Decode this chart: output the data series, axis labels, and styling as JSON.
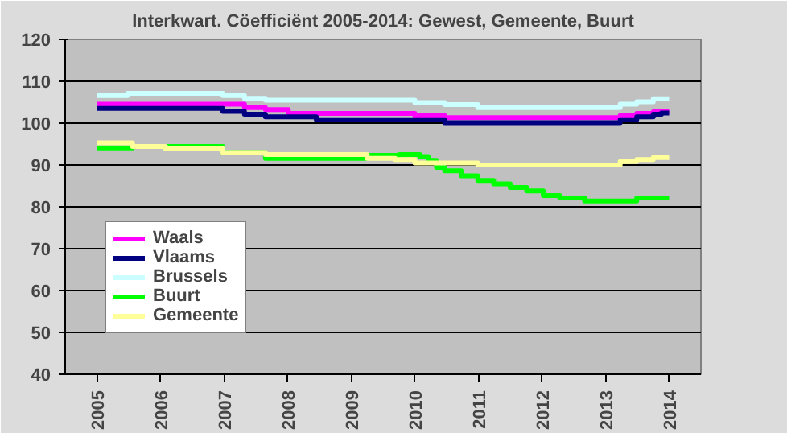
{
  "chart_data": {
    "type": "step",
    "title": "Interkwart. Cöefficiënt 2005-2014: Gewest, Gemeente, Buurt",
    "xlim": [
      2004.5,
      2014.5
    ],
    "xticks": [
      2005,
      2006,
      2007,
      2008,
      2009,
      2010,
      2011,
      2012,
      2013,
      2014
    ],
    "ylim": [
      40,
      120
    ],
    "yticks": [
      40,
      50,
      60,
      70,
      80,
      90,
      100,
      110,
      120
    ],
    "grid": "y",
    "legend": "bottom left",
    "marker": "none",
    "line_style": "solid",
    "series": [
      {
        "name": "Waals",
        "color": "#ff00ff",
        "x": [
          2005,
          2007.32,
          2007.65,
          2008.01,
          2010.0,
          2010.47,
          2013.23,
          2013.49,
          2013.75,
          2014.0
        ],
        "values": [
          104.5,
          103.7,
          103.2,
          102.3,
          101.8,
          101.3,
          101.8,
          102.3,
          102.7,
          102.7
        ]
      },
      {
        "name": "Vlaams",
        "color": "#000080",
        "x": [
          2005,
          2006.98,
          2007.32,
          2007.65,
          2008.45,
          2010.47,
          2013.23,
          2013.49,
          2013.75,
          2013.88,
          2014.0
        ],
        "values": [
          103.5,
          102.8,
          102.1,
          101.5,
          100.8,
          100.1,
          100.8,
          101.5,
          102.1,
          102.4,
          102.4
        ]
      },
      {
        "name": "Brussels",
        "color": "#ccffff",
        "x": [
          2005,
          2005.48,
          2006.98,
          2007.32,
          2007.65,
          2010.0,
          2010.47,
          2010.99,
          2013.23,
          2013.49,
          2013.75,
          2014.0
        ],
        "values": [
          106.6,
          107.1,
          106.6,
          105.9,
          105.5,
          104.9,
          104.4,
          103.7,
          104.5,
          105.1,
          105.8,
          105.8
        ]
      },
      {
        "name": "Buurt",
        "color": "#00ff00",
        "x": [
          2005,
          2005.56,
          2006.98,
          2007.65,
          2009.25,
          2009.75,
          2010.08,
          2010.21,
          2010.34,
          2010.47,
          2010.73,
          2010.99,
          2011.24,
          2011.5,
          2011.76,
          2012.02,
          2012.28,
          2012.67,
          2012.92,
          2013.49,
          2014.0
        ],
        "values": [
          94.1,
          94.4,
          93.0,
          91.6,
          92.3,
          92.5,
          92.0,
          91.1,
          89.4,
          88.6,
          87.4,
          86.3,
          85.5,
          84.6,
          83.8,
          82.7,
          82.1,
          81.4,
          81.4,
          82.1,
          82.1
        ]
      },
      {
        "name": "Gemeente",
        "color": "#ffff99",
        "x": [
          2005,
          2005.56,
          2006.08,
          2006.98,
          2007.65,
          2009.25,
          2009.69,
          2010.0,
          2010.99,
          2013.23,
          2013.49,
          2013.75,
          2014.0
        ],
        "values": [
          95.3,
          94.4,
          93.9,
          93.0,
          92.5,
          91.6,
          91.3,
          90.5,
          90.0,
          90.8,
          91.3,
          91.8,
          91.8
        ]
      }
    ]
  }
}
